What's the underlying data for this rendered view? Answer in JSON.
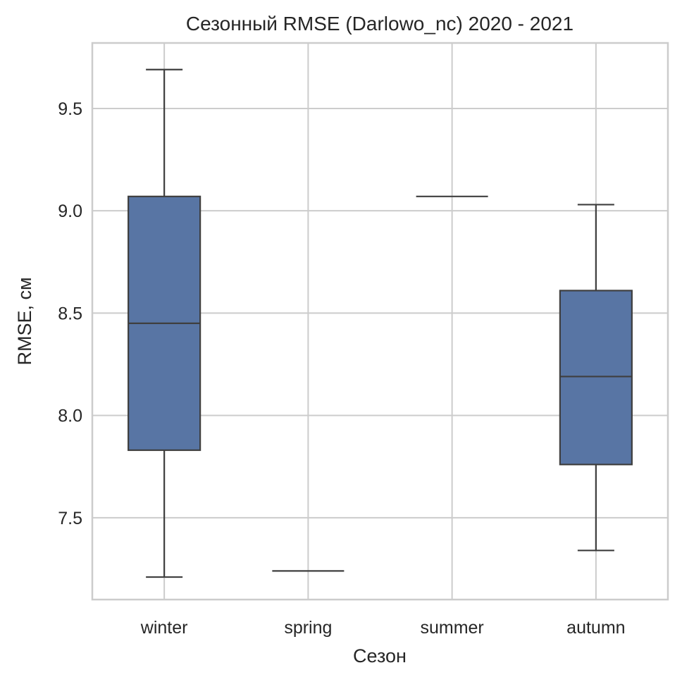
{
  "chart_data": {
    "type": "box",
    "title": "Сезонный RMSE (Darlowo_nc) 2020 - 2021",
    "xlabel": "Сезон",
    "ylabel": "RMSE, см",
    "categories": [
      "winter",
      "spring",
      "summer",
      "autumn"
    ],
    "boxes": [
      {
        "category": "winter",
        "whisker_low": 7.21,
        "q1": 7.83,
        "median": 8.45,
        "q3": 9.07,
        "whisker_high": 9.69
      },
      {
        "category": "spring",
        "whisker_low": 7.24,
        "q1": 7.24,
        "median": 7.24,
        "q3": 7.24,
        "whisker_high": 7.24
      },
      {
        "category": "summer",
        "whisker_low": 9.07,
        "q1": 9.07,
        "median": 9.07,
        "q3": 9.07,
        "whisker_high": 9.07
      },
      {
        "category": "autumn",
        "whisker_low": 7.34,
        "q1": 7.76,
        "median": 8.19,
        "q3": 8.61,
        "whisker_high": 9.03
      }
    ],
    "yticks": [
      "7.5",
      "8.0",
      "8.5",
      "9.0",
      "9.5"
    ],
    "ylim": [
      7.1,
      9.82
    ],
    "grid": true,
    "box_color": "#5875a4",
    "line_color": "#3f3f3f"
  }
}
